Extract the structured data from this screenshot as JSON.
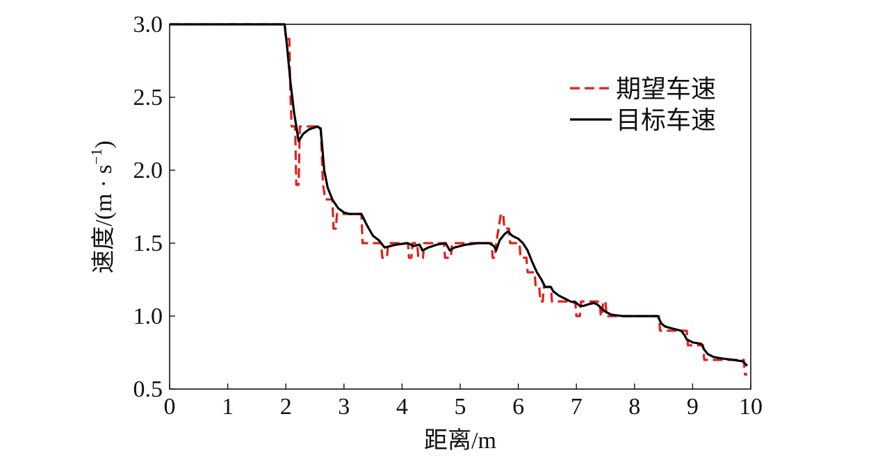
{
  "chart_data": {
    "type": "line",
    "xlabel": "距离/m",
    "ylabel": "速度/(m · s",
    "ylabel_sup": "−1",
    "ylabel_close": ")",
    "xlim": [
      0,
      10
    ],
    "ylim": [
      0.5,
      3.0
    ],
    "x_ticks": [
      "0",
      "1",
      "2",
      "3",
      "4",
      "5",
      "6",
      "7",
      "8",
      "9",
      "10"
    ],
    "y_ticks": [
      "0.5",
      "1.0",
      "1.5",
      "2.0",
      "2.5",
      "3.0"
    ],
    "grid": false,
    "legend_position": "top-right",
    "series": [
      {
        "name": "期望车速",
        "color": "#e0201c",
        "style": "dashed",
        "points": [
          [
            0,
            3.0
          ],
          [
            1.98,
            3.0
          ],
          [
            2.0,
            2.9
          ],
          [
            2.06,
            2.9
          ],
          [
            2.08,
            2.5
          ],
          [
            2.1,
            2.3
          ],
          [
            2.16,
            2.3
          ],
          [
            2.18,
            1.9
          ],
          [
            2.22,
            1.9
          ],
          [
            2.24,
            2.3
          ],
          [
            2.6,
            2.3
          ],
          [
            2.62,
            2.1
          ],
          [
            2.64,
            1.9
          ],
          [
            2.68,
            1.8
          ],
          [
            2.8,
            1.8
          ],
          [
            2.82,
            1.6
          ],
          [
            2.86,
            1.6
          ],
          [
            2.88,
            1.7
          ],
          [
            3.3,
            1.7
          ],
          [
            3.32,
            1.5
          ],
          [
            3.64,
            1.5
          ],
          [
            3.66,
            1.4
          ],
          [
            3.74,
            1.4
          ],
          [
            3.76,
            1.5
          ],
          [
            4.1,
            1.5
          ],
          [
            4.12,
            1.4
          ],
          [
            4.16,
            1.4
          ],
          [
            4.18,
            1.5
          ],
          [
            4.26,
            1.5
          ],
          [
            4.28,
            1.4
          ],
          [
            4.36,
            1.4
          ],
          [
            4.38,
            1.5
          ],
          [
            4.72,
            1.5
          ],
          [
            4.74,
            1.4
          ],
          [
            4.84,
            1.4
          ],
          [
            4.86,
            1.5
          ],
          [
            5.54,
            1.5
          ],
          [
            5.56,
            1.4
          ],
          [
            5.6,
            1.4
          ],
          [
            5.62,
            1.5
          ],
          [
            5.66,
            1.6
          ],
          [
            5.7,
            1.7
          ],
          [
            5.74,
            1.7
          ],
          [
            5.76,
            1.6
          ],
          [
            5.84,
            1.6
          ],
          [
            5.86,
            1.5
          ],
          [
            6.02,
            1.5
          ],
          [
            6.04,
            1.4
          ],
          [
            6.14,
            1.4
          ],
          [
            6.16,
            1.3
          ],
          [
            6.28,
            1.3
          ],
          [
            6.3,
            1.2
          ],
          [
            6.36,
            1.2
          ],
          [
            6.38,
            1.1
          ],
          [
            6.42,
            1.1
          ],
          [
            6.44,
            1.2
          ],
          [
            6.56,
            1.2
          ],
          [
            6.58,
            1.1
          ],
          [
            6.98,
            1.1
          ],
          [
            7.0,
            1.0
          ],
          [
            7.06,
            1.0
          ],
          [
            7.08,
            1.1
          ],
          [
            7.4,
            1.1
          ],
          [
            7.42,
            1.0
          ],
          [
            7.44,
            1.0
          ],
          [
            7.46,
            1.1
          ],
          [
            7.5,
            1.1
          ],
          [
            7.52,
            1.0
          ],
          [
            8.42,
            1.0
          ],
          [
            8.44,
            0.9
          ],
          [
            8.9,
            0.9
          ],
          [
            8.92,
            0.8
          ],
          [
            9.18,
            0.8
          ],
          [
            9.2,
            0.7
          ],
          [
            9.88,
            0.7
          ],
          [
            9.9,
            0.6
          ],
          [
            9.94,
            0.6
          ]
        ]
      },
      {
        "name": "目标车速",
        "color": "#000000",
        "style": "solid",
        "points": [
          [
            0,
            3.0
          ],
          [
            1.98,
            3.0
          ],
          [
            2.02,
            2.85
          ],
          [
            2.08,
            2.6
          ],
          [
            2.14,
            2.4
          ],
          [
            2.22,
            2.2
          ],
          [
            2.3,
            2.25
          ],
          [
            2.4,
            2.28
          ],
          [
            2.55,
            2.3
          ],
          [
            2.6,
            2.28
          ],
          [
            2.66,
            2.0
          ],
          [
            2.72,
            1.88
          ],
          [
            2.8,
            1.8
          ],
          [
            2.9,
            1.74
          ],
          [
            3.0,
            1.71
          ],
          [
            3.1,
            1.7
          ],
          [
            3.3,
            1.7
          ],
          [
            3.4,
            1.62
          ],
          [
            3.5,
            1.55
          ],
          [
            3.6,
            1.52
          ],
          [
            3.7,
            1.47
          ],
          [
            3.8,
            1.48
          ],
          [
            3.9,
            1.49
          ],
          [
            4.1,
            1.5
          ],
          [
            4.2,
            1.48
          ],
          [
            4.3,
            1.49
          ],
          [
            4.35,
            1.45
          ],
          [
            4.45,
            1.47
          ],
          [
            4.6,
            1.49
          ],
          [
            4.75,
            1.5
          ],
          [
            4.82,
            1.45
          ],
          [
            4.9,
            1.47
          ],
          [
            5.1,
            1.49
          ],
          [
            5.3,
            1.5
          ],
          [
            5.5,
            1.5
          ],
          [
            5.58,
            1.48
          ],
          [
            5.62,
            1.45
          ],
          [
            5.68,
            1.52
          ],
          [
            5.76,
            1.56
          ],
          [
            5.82,
            1.58
          ],
          [
            5.9,
            1.55
          ],
          [
            6.0,
            1.53
          ],
          [
            6.08,
            1.5
          ],
          [
            6.16,
            1.45
          ],
          [
            6.24,
            1.37
          ],
          [
            6.32,
            1.3
          ],
          [
            6.4,
            1.25
          ],
          [
            6.46,
            1.2
          ],
          [
            6.56,
            1.2
          ],
          [
            6.6,
            1.17
          ],
          [
            6.7,
            1.14
          ],
          [
            6.8,
            1.12
          ],
          [
            6.9,
            1.1
          ],
          [
            7.0,
            1.09
          ],
          [
            7.06,
            1.07
          ],
          [
            7.12,
            1.07
          ],
          [
            7.2,
            1.08
          ],
          [
            7.3,
            1.09
          ],
          [
            7.36,
            1.08
          ],
          [
            7.44,
            1.05
          ],
          [
            7.5,
            1.03
          ],
          [
            7.6,
            1.01
          ],
          [
            7.8,
            1.0
          ],
          [
            8.0,
            1.0
          ],
          [
            8.4,
            1.0
          ],
          [
            8.46,
            0.95
          ],
          [
            8.52,
            0.93
          ],
          [
            8.6,
            0.92
          ],
          [
            8.8,
            0.9
          ],
          [
            8.86,
            0.87
          ],
          [
            8.9,
            0.84
          ],
          [
            9.0,
            0.82
          ],
          [
            9.15,
            0.81
          ],
          [
            9.2,
            0.77
          ],
          [
            9.26,
            0.74
          ],
          [
            9.36,
            0.72
          ],
          [
            9.5,
            0.71
          ],
          [
            9.7,
            0.7
          ],
          [
            9.86,
            0.69
          ],
          [
            9.94,
            0.66
          ]
        ]
      }
    ]
  }
}
